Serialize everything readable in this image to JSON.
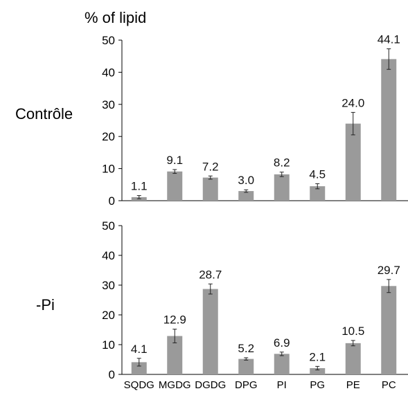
{
  "chart_data": [
    {
      "type": "bar",
      "panel_label": "Contrôle",
      "ylabel": "% of lipid",
      "ylim": [
        0,
        50
      ],
      "yticks": [
        0,
        10,
        20,
        30,
        40,
        50
      ],
      "categories": [
        "SQDG",
        "MGDG",
        "DGDG",
        "DPG",
        "PI",
        "PG",
        "PE",
        "PC"
      ],
      "values": [
        1.1,
        9.1,
        7.2,
        3.0,
        8.2,
        4.5,
        24.0,
        44.1
      ],
      "value_labels": [
        "1.1",
        "9.1",
        "7.2",
        "3.0",
        "8.2",
        "4.5",
        "24.0",
        "44.1"
      ],
      "errors": [
        0.5,
        0.6,
        0.5,
        0.4,
        0.7,
        0.8,
        3.5,
        3.2
      ],
      "show_category_labels": false
    },
    {
      "type": "bar",
      "panel_label": "-Pi",
      "ylim": [
        0,
        50
      ],
      "yticks": [
        0,
        10,
        20,
        30,
        40,
        50
      ],
      "categories": [
        "SQDG",
        "MGDG",
        "DGDG",
        "DPG",
        "PI",
        "PG",
        "PE",
        "PC"
      ],
      "values": [
        4.1,
        12.9,
        28.7,
        5.2,
        6.9,
        2.1,
        10.5,
        29.7
      ],
      "value_labels": [
        "4.1",
        "12.9",
        "28.7",
        "5.2",
        "6.9",
        "2.1",
        "10.5",
        "29.7"
      ],
      "errors": [
        1.3,
        2.3,
        1.7,
        0.4,
        0.6,
        0.6,
        0.9,
        2.2
      ],
      "show_category_labels": true
    }
  ],
  "colors": {
    "bar": "#9a9a9a",
    "axis": "#000000"
  }
}
